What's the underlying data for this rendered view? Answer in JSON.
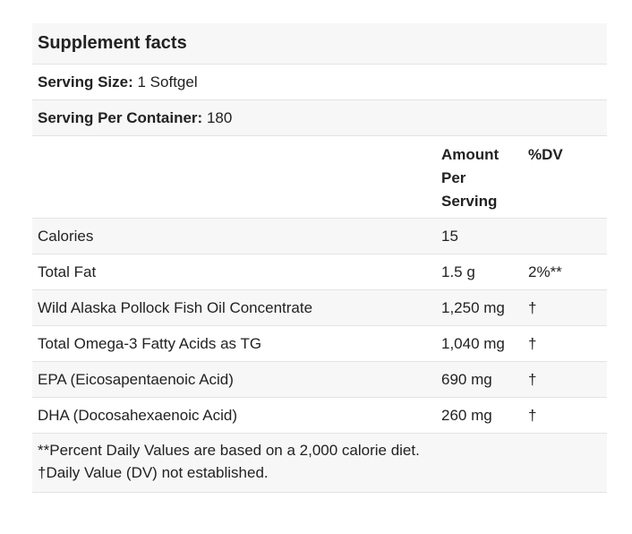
{
  "title": "Supplement facts",
  "serving_size": {
    "label": "Serving Size:",
    "value": "1 Softgel"
  },
  "servings_per_container": {
    "label": "Serving Per Container:",
    "value": "180"
  },
  "columns": {
    "amount": "Amount Per Serving",
    "dv": "%DV"
  },
  "rows": [
    {
      "name": "Calories",
      "amount": "15",
      "dv": ""
    },
    {
      "name": "Total Fat",
      "amount": "1.5 g",
      "dv": "2%**"
    },
    {
      "name": "Wild Alaska Pollock Fish Oil Concentrate",
      "amount": "1,250 mg",
      "dv": "†"
    },
    {
      "name": "Total Omega-3 Fatty Acids as TG",
      "amount": "1,040 mg",
      "dv": "†"
    },
    {
      "name": "EPA (Eicosapentaenoic Acid)",
      "amount": "690 mg",
      "dv": "†"
    },
    {
      "name": "DHA (Docosahexaenoic Acid)",
      "amount": "260 mg",
      "dv": "†"
    }
  ],
  "footnotes": [
    "**Percent Daily Values are based on a 2,000 calorie diet.",
    "†Daily Value (DV) not established."
  ],
  "colors": {
    "stripe": "#f7f7f7",
    "border": "#e3e3e3",
    "text": "#222222"
  }
}
